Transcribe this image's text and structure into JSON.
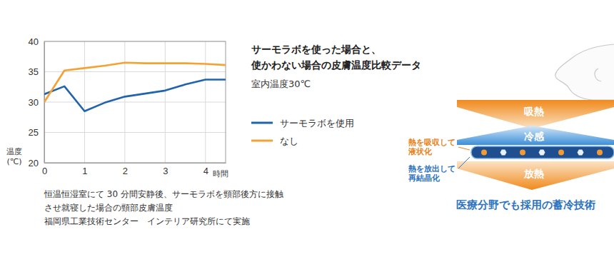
{
  "chart_data": {
    "type": "line",
    "title": "サーモラボを使った場合と、使かわない場合の皮膚温度比較データ",
    "subtitle": "室内温度30℃",
    "x_label": "時間",
    "y_label": "温度(℃)",
    "annotations": [
      "恒温恒湿室にて 30 分間安静後、サーモラボを頸部後方に接触",
      "させ就寝した場合の頸部皮膚温度",
      "福岡県工業技術センター　インテリア研究所にて実施"
    ],
    "x": [
      0,
      0.5,
      1,
      1.5,
      2,
      2.5,
      3,
      3.5,
      4,
      4.5
    ],
    "series": [
      {
        "name": "サーモラボを使用",
        "color": "#1f64ad",
        "values": [
          31.3,
          32.6,
          28.5,
          29.9,
          30.9,
          31.4,
          31.9,
          32.9,
          33.7,
          33.7
        ]
      },
      {
        "name": "なし",
        "color": "#f3a233",
        "values": [
          30.0,
          35.2,
          35.6,
          36.0,
          36.5,
          36.4,
          36.4,
          36.4,
          36.3,
          36.1
        ]
      }
    ],
    "xlim": [
      0,
      4.5
    ],
    "xticks": [
      0,
      1,
      2,
      3,
      4
    ],
    "ylim": [
      20,
      40
    ],
    "yticks": [
      20,
      25,
      30,
      35,
      40
    ],
    "grid": true,
    "legend": "right"
  },
  "diagram": {
    "absorb": "吸熱",
    "cool": "冷感",
    "release": "放熱",
    "absorb_note": [
      "熱を吸収して",
      "液状化"
    ],
    "release_note": [
      "熱を放出して",
      "再結晶化"
    ],
    "caption": "医療分野でも採用の蓄冷技術"
  }
}
